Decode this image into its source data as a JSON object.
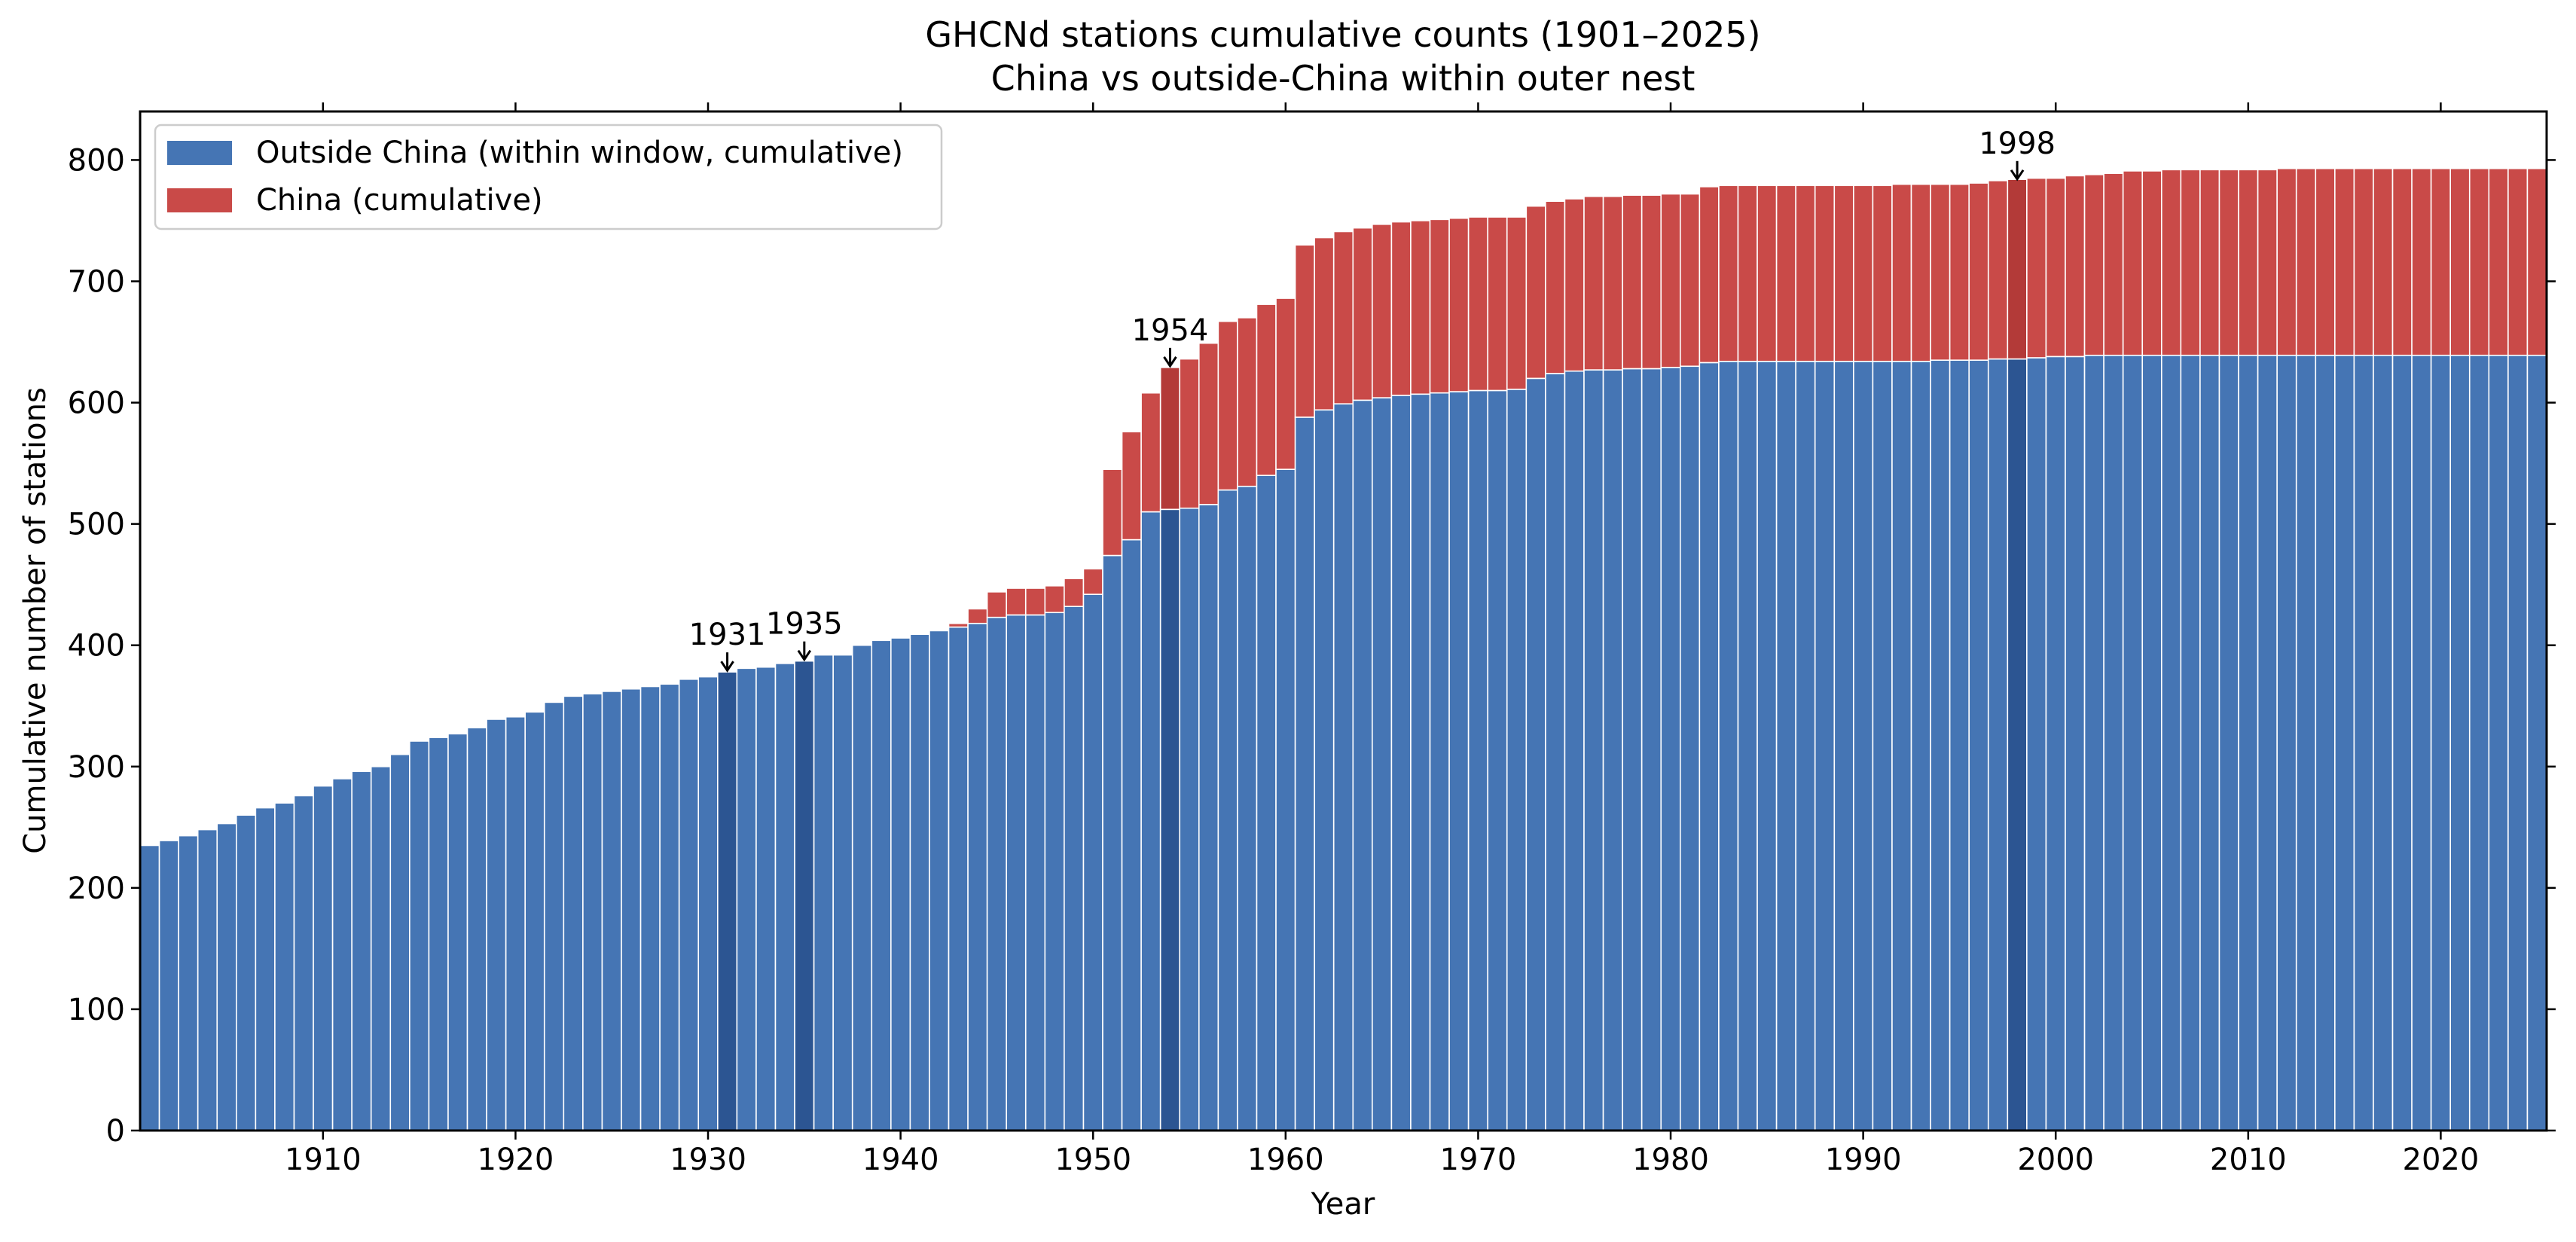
{
  "colors": {
    "outside": "#4575b4",
    "china": "#c94a48",
    "outside_highlight": "#2c5592",
    "china_highlight": "#b33a38",
    "axis": "#000000",
    "legend_border": "#cccccc"
  },
  "chart_data": {
    "type": "bar",
    "stacked": true,
    "title": "GHCNd stations cumulative counts (1901–2025)",
    "subtitle": "China vs outside-China within outer nest",
    "xlabel": "Year",
    "ylabel": "Cumulative number of stations",
    "xlim": [
      1900.5,
      2025.5
    ],
    "ylim": [
      0,
      840
    ],
    "xticks": [
      1910,
      1920,
      1930,
      1940,
      1950,
      1960,
      1970,
      1980,
      1990,
      2000,
      2010,
      2020
    ],
    "yticks": [
      0,
      100,
      200,
      300,
      400,
      500,
      600,
      700,
      800
    ],
    "legend": {
      "placement": "top-left",
      "entries": [
        "Outside China (within window, cumulative)",
        "China (cumulative)"
      ]
    },
    "highlight_years": [
      1931,
      1935,
      1954,
      1998
    ],
    "annotations": [
      {
        "text": "1931",
        "x": 1931,
        "y": 378
      },
      {
        "text": "1935",
        "x": 1935,
        "y": 387
      },
      {
        "text": "1954",
        "x": 1954,
        "y": 629
      },
      {
        "text": "1998",
        "x": 1998,
        "y": 783
      }
    ],
    "x": [
      1901,
      1902,
      1903,
      1904,
      1905,
      1906,
      1907,
      1908,
      1909,
      1910,
      1911,
      1912,
      1913,
      1914,
      1915,
      1916,
      1917,
      1918,
      1919,
      1920,
      1921,
      1922,
      1923,
      1924,
      1925,
      1926,
      1927,
      1928,
      1929,
      1930,
      1931,
      1932,
      1933,
      1934,
      1935,
      1936,
      1937,
      1938,
      1939,
      1940,
      1941,
      1942,
      1943,
      1944,
      1945,
      1946,
      1947,
      1948,
      1949,
      1950,
      1951,
      1952,
      1953,
      1954,
      1955,
      1956,
      1957,
      1958,
      1959,
      1960,
      1961,
      1962,
      1963,
      1964,
      1965,
      1966,
      1967,
      1968,
      1969,
      1970,
      1971,
      1972,
      1973,
      1974,
      1975,
      1976,
      1977,
      1978,
      1979,
      1980,
      1981,
      1982,
      1983,
      1984,
      1985,
      1986,
      1987,
      1988,
      1989,
      1990,
      1991,
      1992,
      1993,
      1994,
      1995,
      1996,
      1997,
      1998,
      1999,
      2000,
      2001,
      2002,
      2003,
      2004,
      2005,
      2006,
      2007,
      2008,
      2009,
      2010,
      2011,
      2012,
      2013,
      2014,
      2015,
      2016,
      2017,
      2018,
      2019,
      2020,
      2021,
      2022,
      2023,
      2024,
      2025
    ],
    "series": [
      {
        "name": "Outside China (within window, cumulative)",
        "values": [
          235,
          239,
          243,
          248,
          253,
          260,
          266,
          270,
          276,
          284,
          290,
          296,
          300,
          310,
          321,
          324,
          327,
          332,
          339,
          341,
          345,
          353,
          358,
          360,
          362,
          364,
          366,
          368,
          372,
          374,
          378,
          381,
          382,
          385,
          387,
          392,
          392,
          400,
          404,
          406,
          409,
          412,
          415,
          418,
          423,
          425,
          425,
          427,
          432,
          442,
          474,
          487,
          510,
          512,
          513,
          516,
          528,
          531,
          540,
          545,
          588,
          594,
          599,
          602,
          604,
          606,
          607,
          608,
          609,
          610,
          610,
          611,
          620,
          624,
          626,
          627,
          627,
          628,
          628,
          629,
          630,
          633,
          634,
          634,
          634,
          634,
          634,
          634,
          634,
          634,
          634,
          634,
          634,
          635,
          635,
          635,
          636,
          636,
          637,
          638,
          638,
          639,
          639,
          639,
          639,
          639,
          639,
          639,
          639,
          639,
          639,
          639,
          639,
          639,
          639,
          639,
          639,
          639,
          639,
          639,
          639,
          639,
          639,
          639,
          639
        ]
      },
      {
        "name": "China (cumulative)",
        "values": [
          0,
          0,
          0,
          0,
          0,
          0,
          0,
          0,
          0,
          0,
          0,
          0,
          0,
          0,
          0,
          0,
          0,
          0,
          0,
          0,
          0,
          0,
          0,
          0,
          0,
          0,
          0,
          0,
          0,
          0,
          0,
          0,
          0,
          0,
          0,
          0,
          0,
          0,
          0,
          0,
          0,
          0,
          3,
          12,
          21,
          22,
          22,
          22,
          23,
          21,
          71,
          89,
          98,
          117,
          123,
          133,
          139,
          139,
          141,
          141,
          142,
          142,
          142,
          142,
          143,
          143,
          143,
          143,
          143,
          143,
          143,
          142,
          142,
          142,
          142,
          143,
          143,
          143,
          143,
          143,
          142,
          145,
          145,
          145,
          145,
          145,
          145,
          145,
          145,
          145,
          145,
          146,
          146,
          145,
          145,
          146,
          147,
          148,
          148,
          147,
          149,
          149,
          150,
          152,
          152,
          153,
          153,
          153,
          153,
          153,
          153,
          154,
          154,
          154,
          154,
          154,
          154,
          154,
          154,
          154,
          154,
          154,
          154,
          154,
          154
        ]
      }
    ]
  }
}
